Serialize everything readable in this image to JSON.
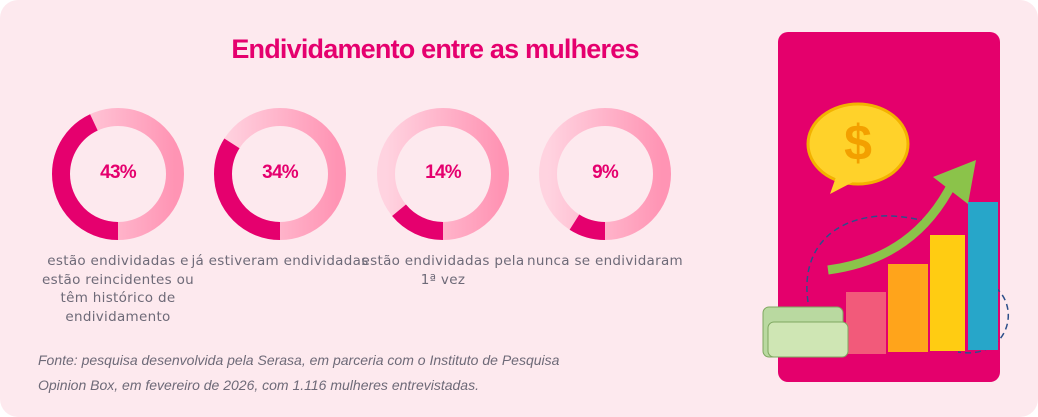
{
  "title": "Endividamento entre as mulheres",
  "chart_data": {
    "type": "pie",
    "title": "Endividamento entre as mulheres",
    "items": [
      {
        "value": 43,
        "label_value": "43%",
        "label": "estão endividadas e estão reincidentes ou têm histórico de endividamento"
      },
      {
        "value": 34,
        "label_value": "34%",
        "label": "já estiveram endividadas"
      },
      {
        "value": 14,
        "label_value": "14%",
        "label": "estão endividadas pela 1ª vez"
      },
      {
        "value": 9,
        "label_value": "9%",
        "label": "nunca se endividaram"
      }
    ],
    "colors": {
      "value": "#e5006e",
      "rest_light": "#ffd3e0",
      "rest_dark": "#ff94b4"
    }
  },
  "source": {
    "line1": "Fonte: pesquisa desenvolvida pela Serasa, em parceria com o Instituto de Pesquisa",
    "line2": "Opinion Box, em fevereiro de 2026, com 1.116 mulheres entrevistadas."
  },
  "illustration": "coin-growth-chart-illustration"
}
